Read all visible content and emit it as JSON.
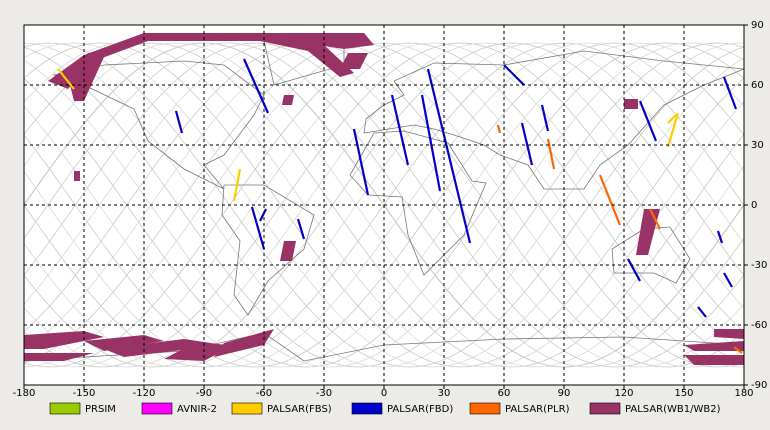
{
  "chart_data": {
    "type": "map",
    "xlim": [
      -180,
      180
    ],
    "ylim": [
      -90,
      90
    ],
    "xticks": [
      -180,
      -150,
      -120,
      -90,
      -60,
      -30,
      0,
      30,
      60,
      90,
      120,
      150,
      180
    ],
    "yticks": [
      -90,
      -60,
      -30,
      0,
      30,
      60,
      90
    ],
    "grid": true,
    "legend": [
      {
        "name": "PRSIM",
        "color": "#99cc00"
      },
      {
        "name": "AVNIR-2",
        "color": "#ff00ff"
      },
      {
        "name": "PALSAR(FBS)",
        "color": "#ffcc00"
      },
      {
        "name": "PALSAR(FBD)",
        "color": "#0000cc"
      },
      {
        "name": "PALSAR(PLR)",
        "color": "#ff6600"
      },
      {
        "name": "PALSAR(WB1/WB2)",
        "color": "#993366"
      }
    ]
  }
}
